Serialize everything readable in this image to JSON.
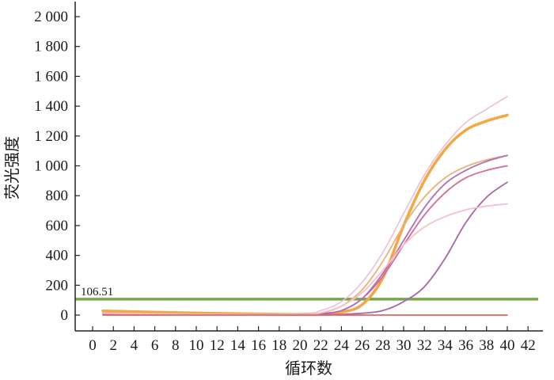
{
  "chart_data": {
    "type": "line",
    "xlabel": "循环数",
    "ylabel": "荧光强度",
    "title": "",
    "xlim": [
      -1,
      42
    ],
    "ylim": [
      -20,
      2050
    ],
    "x_ticks": [
      0,
      2,
      4,
      6,
      8,
      10,
      12,
      14,
      16,
      18,
      20,
      22,
      24,
      26,
      28,
      30,
      32,
      34,
      36,
      38,
      40,
      42
    ],
    "x_tick_labels": [
      "0",
      "2",
      "4",
      "6",
      "8",
      "10",
      "12",
      "14",
      "16",
      "18",
      "20",
      "22",
      "24",
      "26",
      "28",
      "30",
      "32",
      "34",
      "36",
      "38",
      "40",
      "42"
    ],
    "y_ticks": [
      0,
      200,
      400,
      600,
      800,
      1000,
      1200,
      1400,
      1600,
      1800,
      2000
    ],
    "y_tick_labels": [
      "0",
      "200",
      "400",
      "600",
      "800",
      "1 000",
      "1 200",
      "1 400",
      "1 600",
      "1 800",
      "2 000"
    ],
    "grid": false,
    "threshold": {
      "value": 106.51,
      "label": "106.51",
      "color": "#7aa64a"
    },
    "series": [
      {
        "color": "#e9c0d6",
        "width": 1.6,
        "values": [
          [
            1,
            12
          ],
          [
            10,
            6
          ],
          [
            20,
            10
          ],
          [
            22,
            30
          ],
          [
            24,
            90
          ],
          [
            26,
            220
          ],
          [
            28,
            420
          ],
          [
            30,
            680
          ],
          [
            32,
            940
          ],
          [
            34,
            1140
          ],
          [
            36,
            1290
          ],
          [
            38,
            1380
          ],
          [
            40,
            1465
          ]
        ]
      },
      {
        "color": "#f5a640",
        "width": 3.5,
        "values": [
          [
            1,
            28
          ],
          [
            10,
            14
          ],
          [
            20,
            4
          ],
          [
            22,
            8
          ],
          [
            24,
            20
          ],
          [
            26,
            70
          ],
          [
            28,
            250
          ],
          [
            30,
            600
          ],
          [
            32,
            900
          ],
          [
            34,
            1110
          ],
          [
            36,
            1240
          ],
          [
            38,
            1300
          ],
          [
            40,
            1340
          ]
        ]
      },
      {
        "color": "#e7b27a",
        "width": 1.8,
        "values": [
          [
            1,
            15
          ],
          [
            10,
            6
          ],
          [
            20,
            4
          ],
          [
            22,
            15
          ],
          [
            24,
            60
          ],
          [
            26,
            170
          ],
          [
            28,
            360
          ],
          [
            30,
            600
          ],
          [
            32,
            790
          ],
          [
            34,
            920
          ],
          [
            36,
            995
          ],
          [
            38,
            1040
          ],
          [
            40,
            1070
          ]
        ]
      },
      {
        "color": "#d86a98",
        "width": 1.8,
        "values": [
          [
            1,
            10
          ],
          [
            10,
            5
          ],
          [
            20,
            3
          ],
          [
            22,
            8
          ],
          [
            24,
            30
          ],
          [
            26,
            110
          ],
          [
            28,
            260
          ],
          [
            30,
            470
          ],
          [
            32,
            670
          ],
          [
            34,
            820
          ],
          [
            36,
            920
          ],
          [
            38,
            970
          ],
          [
            40,
            1000
          ]
        ]
      },
      {
        "color": "#b070b3",
        "width": 1.8,
        "values": [
          [
            1,
            10
          ],
          [
            10,
            5
          ],
          [
            20,
            5
          ],
          [
            22,
            10
          ],
          [
            24,
            30
          ],
          [
            26,
            110
          ],
          [
            28,
            280
          ],
          [
            30,
            500
          ],
          [
            32,
            720
          ],
          [
            34,
            880
          ],
          [
            36,
            970
          ],
          [
            38,
            1030
          ],
          [
            40,
            1070
          ]
        ]
      },
      {
        "color": "#a865a8",
        "width": 1.8,
        "values": [
          [
            1,
            5
          ],
          [
            10,
            3
          ],
          [
            20,
            2
          ],
          [
            24,
            5
          ],
          [
            26,
            12
          ],
          [
            28,
            30
          ],
          [
            30,
            90
          ],
          [
            32,
            190
          ],
          [
            34,
            380
          ],
          [
            36,
            620
          ],
          [
            38,
            790
          ],
          [
            40,
            890
          ]
        ]
      },
      {
        "color": "#f3c1c8",
        "width": 1.8,
        "values": [
          [
            1,
            12
          ],
          [
            10,
            6
          ],
          [
            20,
            5
          ],
          [
            22,
            15
          ],
          [
            24,
            60
          ],
          [
            26,
            150
          ],
          [
            28,
            300
          ],
          [
            30,
            470
          ],
          [
            32,
            590
          ],
          [
            34,
            660
          ],
          [
            36,
            705
          ],
          [
            38,
            730
          ],
          [
            40,
            745
          ]
        ]
      },
      {
        "color": "#e06460",
        "width": 1.8,
        "values": [
          [
            1,
            0
          ],
          [
            10,
            0
          ],
          [
            20,
            0
          ],
          [
            30,
            0
          ],
          [
            40,
            0
          ]
        ]
      }
    ]
  }
}
